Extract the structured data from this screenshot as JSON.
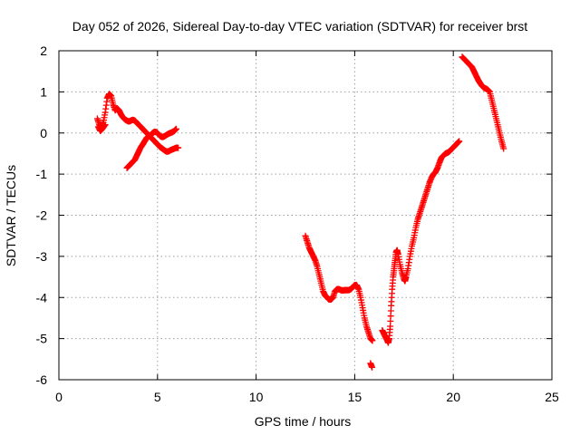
{
  "chart_data": {
    "type": "scatter",
    "title": "Day 052 of 2026, Sidereal Day-to-day VTEC variation (SDTVAR) for receiver brst",
    "xlabel": "GPS time / hours",
    "ylabel": "SDTVAR / TECUs",
    "xlim": [
      0,
      25
    ],
    "ylim": [
      -6,
      2
    ],
    "xticks": [
      0,
      5,
      10,
      15,
      20,
      25
    ],
    "yticks": [
      -6,
      -5,
      -4,
      -3,
      -2,
      -1,
      0,
      1,
      2
    ],
    "grid": true,
    "marker": "plus",
    "color": "#ff0000",
    "segments": [
      {
        "x": [
          1.95,
          2.05,
          2.15,
          2.25,
          2.35,
          2.45,
          2.55,
          2.65,
          2.75,
          2.85,
          2.95,
          3.05,
          3.15,
          3.25,
          3.35,
          3.45,
          3.55,
          3.65,
          3.75,
          3.85,
          3.95,
          4.05,
          4.15,
          4.25,
          4.35,
          4.45,
          4.55,
          4.65,
          4.75,
          4.85,
          4.95,
          5.05,
          5.15,
          5.25,
          5.35,
          5.45,
          5.55,
          5.65,
          5.75,
          5.85,
          5.95,
          6.05
        ],
        "y": [
          0.35,
          0.2,
          0.15,
          0.25,
          0.5,
          0.85,
          0.95,
          0.9,
          0.7,
          0.55,
          0.6,
          0.55,
          0.45,
          0.38,
          0.33,
          0.3,
          0.28,
          0.3,
          0.32,
          0.3,
          0.25,
          0.2,
          0.15,
          0.1,
          0.05,
          0.0,
          -0.05,
          -0.1,
          -0.15,
          -0.2,
          -0.25,
          -0.3,
          -0.35,
          -0.38,
          -0.42,
          -0.45,
          -0.45,
          -0.42,
          -0.4,
          -0.38,
          -0.36,
          -0.36
        ]
      },
      {
        "x": [
          2.0,
          2.1,
          2.2,
          2.35
        ],
        "y": [
          0.15,
          0.05,
          0.1,
          0.2
        ]
      },
      {
        "x": [
          3.45,
          3.55,
          3.65,
          3.75,
          3.85,
          3.95,
          4.05,
          4.15,
          4.25,
          4.35,
          4.45,
          4.55,
          4.65,
          4.75,
          4.85,
          4.95,
          5.05,
          5.15,
          5.25,
          5.35,
          5.45,
          5.55,
          5.65,
          5.75,
          5.85,
          5.95
        ],
        "y": [
          -0.85,
          -0.8,
          -0.75,
          -0.7,
          -0.65,
          -0.55,
          -0.45,
          -0.35,
          -0.28,
          -0.2,
          -0.12,
          -0.08,
          -0.05,
          0.0,
          0.03,
          0.02,
          -0.03,
          -0.08,
          -0.1,
          -0.08,
          -0.05,
          -0.02,
          0.0,
          0.02,
          0.05,
          0.1
        ]
      },
      {
        "x": [
          12.5,
          12.6,
          12.7,
          12.8,
          12.9,
          13.0,
          13.1,
          13.2,
          13.3,
          13.4,
          13.5,
          13.6,
          13.7,
          13.8,
          13.9,
          14.0,
          14.1,
          14.2,
          14.3,
          14.4,
          14.5,
          14.6,
          14.7,
          14.8,
          14.9,
          15.0,
          15.1,
          15.2,
          15.3,
          15.4,
          15.5,
          15.6,
          15.7,
          15.8,
          15.9
        ],
        "y": [
          -2.5,
          -2.65,
          -2.8,
          -2.9,
          -3.0,
          -3.1,
          -3.25,
          -3.45,
          -3.65,
          -3.85,
          -3.95,
          -4.0,
          -4.05,
          -4.05,
          -4.0,
          -3.85,
          -3.8,
          -3.8,
          -3.82,
          -3.83,
          -3.82,
          -3.82,
          -3.82,
          -3.8,
          -3.75,
          -3.7,
          -3.7,
          -3.8,
          -4.0,
          -4.25,
          -4.5,
          -4.7,
          -4.85,
          -5.0,
          -5.05
        ]
      },
      {
        "x": [
          15.8,
          15.88
        ],
        "y": [
          -5.6,
          -5.7
        ]
      },
      {
        "x": [
          16.4,
          16.5,
          16.6,
          16.7,
          16.75,
          16.8,
          16.85,
          16.9,
          16.95,
          17.0,
          17.05,
          17.1,
          17.15,
          17.2,
          17.3,
          17.4,
          17.5,
          17.55,
          17.6,
          17.7,
          17.8,
          17.9,
          18.0,
          18.1,
          18.2,
          18.3,
          18.4,
          18.5,
          18.6,
          18.7,
          18.8,
          18.9,
          19.0,
          19.1,
          19.2,
          19.3,
          19.4,
          19.5,
          19.6,
          19.7,
          19.8,
          19.9,
          20.0,
          20.1,
          20.2,
          20.3
        ],
        "y": [
          -4.8,
          -4.9,
          -5.0,
          -5.1,
          -5.0,
          -4.7,
          -4.2,
          -3.8,
          -3.5,
          -3.3,
          -3.1,
          -2.9,
          -2.85,
          -2.95,
          -3.2,
          -3.4,
          -3.55,
          -3.6,
          -3.5,
          -3.3,
          -3.0,
          -2.75,
          -2.55,
          -2.3,
          -2.1,
          -1.95,
          -1.8,
          -1.65,
          -1.5,
          -1.35,
          -1.2,
          -1.08,
          -1.0,
          -0.95,
          -0.85,
          -0.72,
          -0.6,
          -0.55,
          -0.5,
          -0.48,
          -0.45,
          -0.4,
          -0.35,
          -0.3,
          -0.25,
          -0.2
        ]
      },
      {
        "x": [
          20.45,
          20.55,
          20.65,
          20.75,
          20.85,
          20.95,
          21.05,
          21.15,
          21.25,
          21.35,
          21.45,
          21.55,
          21.65,
          21.75,
          21.85,
          21.95,
          22.05,
          22.15,
          22.25,
          22.35,
          22.45,
          22.55
        ],
        "y": [
          1.85,
          1.8,
          1.75,
          1.7,
          1.65,
          1.6,
          1.5,
          1.4,
          1.3,
          1.22,
          1.15,
          1.1,
          1.08,
          1.05,
          1.0,
          0.8,
          0.6,
          0.4,
          0.2,
          0.0,
          -0.2,
          -0.38
        ]
      }
    ]
  }
}
